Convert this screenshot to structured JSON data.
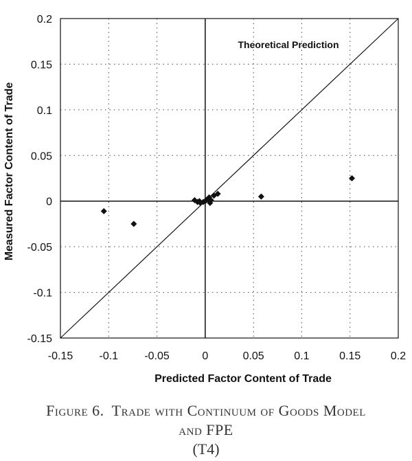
{
  "chart_data": {
    "type": "scatter",
    "title": "",
    "xlabel": "Predicted Factor Content of Trade",
    "ylabel": "Measured Factor Content of Trade",
    "xlim": [
      -0.15,
      0.2
    ],
    "ylim": [
      -0.15,
      0.2
    ],
    "x_ticks": [
      "-0.15",
      "-0.1",
      "-0.05",
      "0",
      "0.05",
      "0.1",
      "0.15",
      "0.2"
    ],
    "y_ticks": [
      "0.2",
      "0.15",
      "0.1",
      "0.05",
      "0",
      "-0.05",
      "-0.1",
      "-0.15"
    ],
    "grid": "dotted",
    "annotation": "Theoretical Prediction",
    "reference_line": {
      "from": [
        -0.15,
        -0.15
      ],
      "to": [
        0.2,
        0.2
      ]
    },
    "points": [
      {
        "x": -0.105,
        "y": -0.011
      },
      {
        "x": -0.074,
        "y": -0.025
      },
      {
        "x": -0.011,
        "y": 0.001
      },
      {
        "x": -0.008,
        "y": -0.001
      },
      {
        "x": -0.006,
        "y": 0.0
      },
      {
        "x": -0.005,
        "y": -0.002
      },
      {
        "x": -0.002,
        "y": -0.001
      },
      {
        "x": 0.0,
        "y": 0.0
      },
      {
        "x": 0.001,
        "y": 0.001
      },
      {
        "x": 0.003,
        "y": 0.002
      },
      {
        "x": 0.004,
        "y": 0.004
      },
      {
        "x": 0.005,
        "y": -0.002
      },
      {
        "x": 0.006,
        "y": 0.001
      },
      {
        "x": 0.009,
        "y": 0.006
      },
      {
        "x": 0.013,
        "y": 0.008
      },
      {
        "x": 0.058,
        "y": 0.005
      },
      {
        "x": 0.152,
        "y": 0.025
      }
    ]
  },
  "caption": {
    "line1_prefix": "Figure 6.",
    "line1_rest": "Trade with Continuum of Goods Model",
    "line2": "and FPE",
    "line3": "(T4)"
  }
}
